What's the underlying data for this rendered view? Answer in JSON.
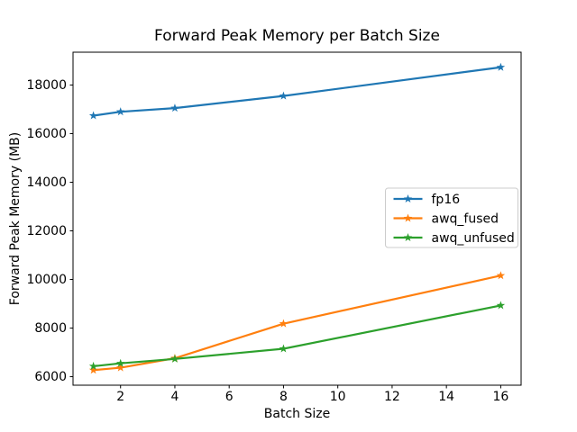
{
  "figure": {
    "title": "Forward Peak Memory per Batch Size",
    "xlabel": "Batch Size",
    "ylabel": "Forward Peak Memory (MB)"
  },
  "chart_data": {
    "type": "line",
    "title": "Forward Peak Memory per Batch Size",
    "xlabel": "Batch Size",
    "ylabel": "Forward Peak Memory (MB)",
    "x": [
      1,
      2,
      4,
      8,
      16
    ],
    "series": [
      {
        "name": "fp16",
        "color": "#1f77b4",
        "values": [
          16740,
          16900,
          17050,
          17550,
          18730
        ]
      },
      {
        "name": "awq_fused",
        "color": "#ff7f0e",
        "values": [
          6270,
          6370,
          6760,
          8180,
          10160
        ]
      },
      {
        "name": "awq_unfused",
        "color": "#2ca02c",
        "values": [
          6430,
          6550,
          6730,
          7150,
          8930
        ]
      }
    ],
    "marker": "star",
    "xticks": [
      2,
      4,
      6,
      8,
      10,
      12,
      14,
      16
    ],
    "yticks": [
      6000,
      8000,
      10000,
      12000,
      14000,
      16000,
      18000
    ],
    "xlim": [
      0.25,
      16.75
    ],
    "ylim": [
      5650,
      19350
    ],
    "grid": false,
    "legend_position": "inside-center-right",
    "axis_color": "#000000",
    "background_color": "#ffffff",
    "legend_border_color": "#cccccc",
    "tick_label_color": "#000000"
  }
}
